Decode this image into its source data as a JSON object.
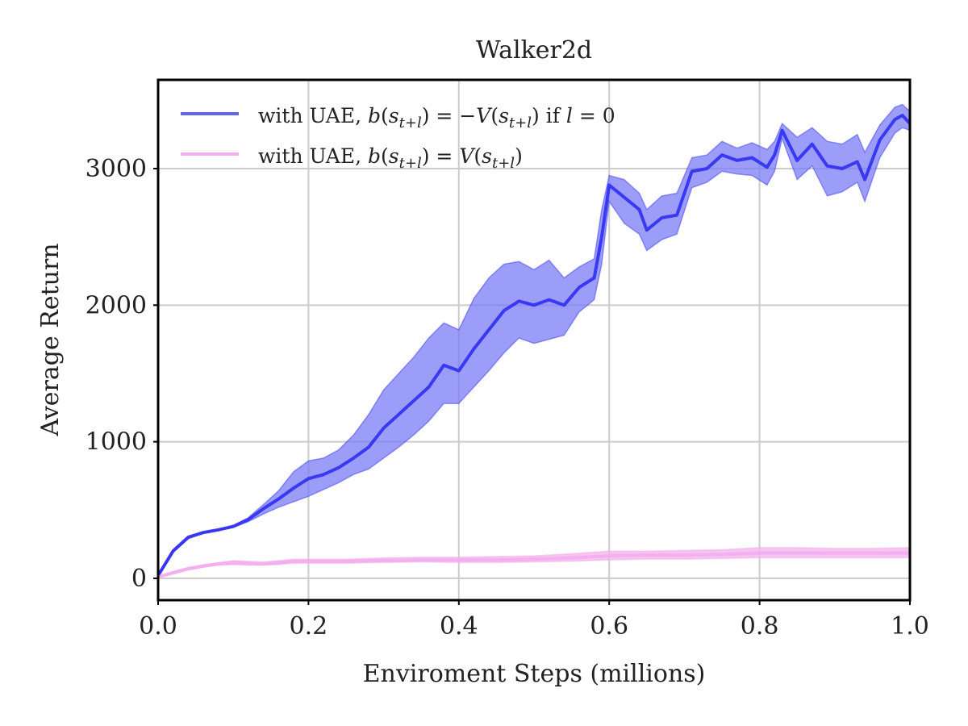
{
  "chart_data": {
    "type": "line",
    "title": "Walker2d",
    "xlabel": "Enviroment Steps (millions)",
    "ylabel": "Average Return",
    "xlim": [
      0.0,
      1.0
    ],
    "ylim": [
      -160,
      3650
    ],
    "x_ticks": [
      0.0,
      0.2,
      0.4,
      0.6,
      0.8,
      1.0
    ],
    "x_tick_labels": [
      "0.0",
      "0.2",
      "0.4",
      "0.6",
      "0.8",
      "1.0"
    ],
    "y_ticks": [
      0,
      1000,
      2000,
      3000
    ],
    "y_tick_labels": [
      "0",
      "1000",
      "2000",
      "3000"
    ],
    "grid": true,
    "legend_position": "top-left",
    "series": [
      {
        "name": "with UAE, b(s_{t+l}) = −V(s_{t+l}) if l = 0",
        "color": "#2f2ff2",
        "band_color": "#7b7bf7",
        "x": [
          0.0,
          0.02,
          0.04,
          0.06,
          0.08,
          0.1,
          0.12,
          0.14,
          0.16,
          0.18,
          0.2,
          0.22,
          0.24,
          0.26,
          0.28,
          0.3,
          0.32,
          0.34,
          0.36,
          0.38,
          0.4,
          0.42,
          0.44,
          0.46,
          0.48,
          0.5,
          0.52,
          0.54,
          0.56,
          0.58,
          0.59,
          0.6,
          0.62,
          0.64,
          0.65,
          0.67,
          0.69,
          0.71,
          0.73,
          0.75,
          0.77,
          0.79,
          0.81,
          0.82,
          0.83,
          0.85,
          0.87,
          0.89,
          0.91,
          0.93,
          0.94,
          0.96,
          0.98,
          0.99,
          1.0
        ],
        "mean": [
          20,
          200,
          300,
          335,
          355,
          380,
          430,
          510,
          580,
          660,
          730,
          760,
          810,
          880,
          960,
          1100,
          1200,
          1300,
          1400,
          1560,
          1520,
          1680,
          1820,
          1960,
          2030,
          2000,
          2040,
          2000,
          2130,
          2200,
          2500,
          2880,
          2790,
          2700,
          2550,
          2640,
          2660,
          2980,
          3000,
          3100,
          3060,
          3080,
          3010,
          3100,
          3280,
          3060,
          3180,
          3020,
          3000,
          3050,
          2920,
          3210,
          3360,
          3390,
          3330
        ],
        "upper": [
          30,
          210,
          310,
          340,
          360,
          385,
          445,
          540,
          640,
          780,
          860,
          880,
          940,
          1050,
          1200,
          1380,
          1500,
          1620,
          1760,
          1870,
          1820,
          2050,
          2200,
          2300,
          2320,
          2260,
          2330,
          2200,
          2280,
          2340,
          2700,
          2950,
          2920,
          2820,
          2700,
          2800,
          2820,
          3080,
          3100,
          3200,
          3150,
          3190,
          3140,
          3200,
          3330,
          3230,
          3300,
          3200,
          3180,
          3250,
          3120,
          3320,
          3450,
          3470,
          3420
        ],
        "lower": [
          10,
          190,
          290,
          330,
          350,
          372,
          415,
          470,
          520,
          560,
          600,
          650,
          700,
          760,
          800,
          880,
          960,
          1050,
          1150,
          1280,
          1280,
          1400,
          1520,
          1650,
          1760,
          1720,
          1750,
          1780,
          1950,
          2040,
          2300,
          2760,
          2600,
          2520,
          2400,
          2480,
          2520,
          2860,
          2900,
          2980,
          2960,
          2950,
          2880,
          2980,
          3220,
          2920,
          3020,
          2800,
          2830,
          2900,
          2760,
          3080,
          3260,
          3300,
          3280
        ]
      },
      {
        "name": "with UAE, b(s_{t+l}) = V(s_{t+l})",
        "color": "#f2a8ec",
        "band_color": "#f3b5ee",
        "x": [
          0.0,
          0.02,
          0.04,
          0.06,
          0.08,
          0.1,
          0.12,
          0.14,
          0.16,
          0.18,
          0.2,
          0.25,
          0.3,
          0.35,
          0.4,
          0.45,
          0.5,
          0.55,
          0.6,
          0.65,
          0.7,
          0.75,
          0.8,
          0.85,
          0.9,
          0.95,
          1.0
        ],
        "mean": [
          10,
          40,
          70,
          90,
          105,
          115,
          110,
          105,
          115,
          125,
          125,
          125,
          130,
          135,
          135,
          135,
          140,
          150,
          165,
          170,
          170,
          175,
          185,
          185,
          185,
          185,
          185
        ],
        "upper": [
          15,
          50,
          80,
          100,
          115,
          130,
          125,
          120,
          130,
          140,
          140,
          140,
          150,
          155,
          155,
          160,
          165,
          180,
          200,
          200,
          205,
          210,
          225,
          225,
          220,
          220,
          225
        ],
        "lower": [
          5,
          30,
          60,
          80,
          95,
          100,
          95,
          95,
          100,
          110,
          110,
          110,
          115,
          120,
          115,
          115,
          120,
          125,
          135,
          140,
          140,
          145,
          150,
          150,
          150,
          150,
          150
        ]
      }
    ],
    "legend": [
      {
        "prefix": "with UAE, ",
        "fn": "b",
        "lparen": "(",
        "s": "s",
        "sub": "t+l",
        "rel": ") = −",
        "vfn": "V",
        "v_s": "s",
        "v_sub": "t+l",
        "tail": ") if ",
        "l": "l",
        "eq": " = 0"
      },
      {
        "prefix": "with UAE, ",
        "fn": "b",
        "lparen": "(",
        "s": "s",
        "sub": "t+l",
        "rel": ") = ",
        "vfn": "V",
        "v_s": "s",
        "v_sub": "t+l",
        "tail": ")"
      }
    ]
  }
}
